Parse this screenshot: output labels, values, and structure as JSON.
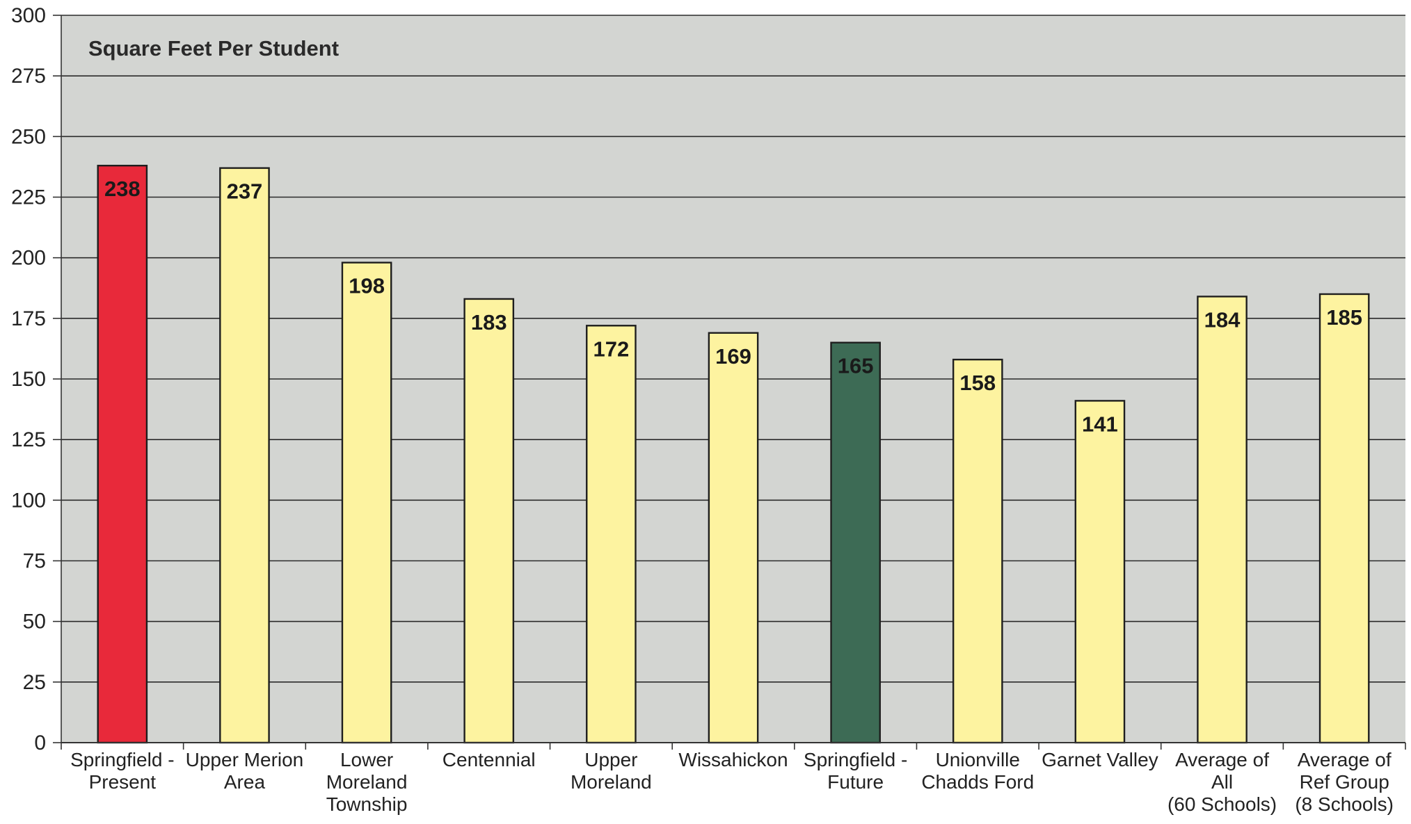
{
  "chart_data": {
    "type": "bar",
    "title": "Square Feet Per Student",
    "xlabel": "",
    "ylabel": "",
    "ylim": [
      0,
      300
    ],
    "yticks": [
      0,
      25,
      50,
      75,
      100,
      125,
      150,
      175,
      200,
      225,
      250,
      275,
      300
    ],
    "grid": true,
    "legend": "none",
    "categories": [
      [
        "Springfield -",
        "Present"
      ],
      [
        "Upper Merion",
        "Area"
      ],
      [
        "Lower",
        "Moreland",
        "Township"
      ],
      [
        "Centennial"
      ],
      [
        "Upper",
        "Moreland"
      ],
      [
        "Wissahickon"
      ],
      [
        "Springfield -",
        "Future"
      ],
      [
        "Unionville",
        "Chadds Ford"
      ],
      [
        "Garnet Valley"
      ],
      [
        "Average of",
        "All",
        "(60 Schools)"
      ],
      [
        "Average of",
        "Ref Group",
        "(8 Schools)"
      ]
    ],
    "values": [
      238,
      237,
      198,
      183,
      172,
      169,
      165,
      158,
      141,
      184,
      185
    ],
    "bar_colors": [
      "#e8293a",
      "#fdf3a0",
      "#fdf3a0",
      "#fdf3a0",
      "#fdf3a0",
      "#fdf3a0",
      "#3d6b55",
      "#fdf3a0",
      "#fdf3a0",
      "#fdf3a0",
      "#fdf3a0"
    ],
    "plot_background": "#d3d5d2",
    "grid_color": "#2b2b2b"
  }
}
